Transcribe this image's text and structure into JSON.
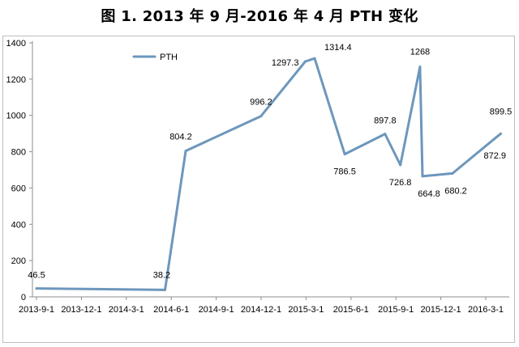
{
  "title": "图 1. 2013 年 9 月-2016 年 4 月 PTH 变化",
  "chart_data": {
    "type": "line",
    "title": "图 1. 2013 年 9 月-2016 年 4 月 PTH 变化",
    "xlabel": "",
    "ylabel": "",
    "ylim": [
      0,
      1400
    ],
    "yticks": [
      0,
      200,
      400,
      600,
      800,
      1000,
      1200,
      1400
    ],
    "categories": [
      "2013-9-1",
      "2013-12-1",
      "2014-3-1",
      "2014-6-1",
      "2014-9-1",
      "2014-12-1",
      "2015-3-1",
      "2015-6-1",
      "2015-9-1",
      "2015-12-1",
      "2016-3-1"
    ],
    "legend": {
      "position": "top-left",
      "entries": [
        "PTH"
      ]
    },
    "grid": false,
    "color": "#6d97bc",
    "series": [
      {
        "name": "PTH",
        "points": [
          {
            "x": "2013-9-1",
            "y": 46.5,
            "label": "46.5"
          },
          {
            "x": "2014-5-20",
            "y": 38.2,
            "label": "38.2"
          },
          {
            "x": "2014-7-1",
            "y": 804.2,
            "label": "804.2"
          },
          {
            "x": "2014-12-1",
            "y": 996.2,
            "label": "996.2"
          },
          {
            "x": "2015-3-1",
            "y": 1297.3,
            "label": "1297.3"
          },
          {
            "x": "2015-3-20",
            "y": 1314.4,
            "label": "1314.4"
          },
          {
            "x": "2015-5-20",
            "y": 786.5,
            "label": "786.5"
          },
          {
            "x": "2015-8-10",
            "y": 897.8,
            "label": "897.8"
          },
          {
            "x": "2015-9-10",
            "y": 726.8,
            "label": "726.8"
          },
          {
            "x": "2015-10-20",
            "y": 1268,
            "label": "1268"
          },
          {
            "x": "2015-10-25",
            "y": 664.8,
            "label": "664.8"
          },
          {
            "x": "2015-12-25",
            "y": 680.2,
            "label": "680.2"
          },
          {
            "x": "2016-3-20",
            "y": 872.9,
            "label": "872.9"
          },
          {
            "x": "2016-4-1",
            "y": 899.5,
            "label": "899.5"
          }
        ]
      }
    ]
  }
}
